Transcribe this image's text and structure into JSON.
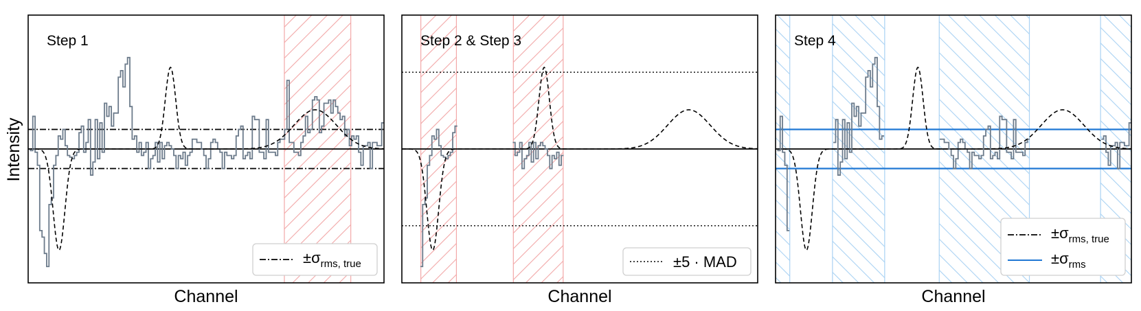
{
  "figure": {
    "ylabel": "Intensity",
    "xlabel": "Channel"
  },
  "colors": {
    "spectrum": "#6c7b8b",
    "model": "#000000",
    "hatch_red": "#f2a7a7",
    "hatch_blue": "#a9d2f3",
    "sigma_rms": "#1f77d4"
  },
  "chart_data": [
    {
      "type": "line",
      "panel": "step-1",
      "annotation": "Step 1",
      "xlabel": "Channel",
      "ylabel": "Intensity",
      "xlim": [
        0,
        150
      ],
      "ylim": [
        -4.1,
        4.1
      ],
      "spectrum": [
        0.0,
        -0.05,
        1.0,
        -0.1,
        -0.5,
        -2.5,
        -2.7,
        -3.2,
        -3.6,
        -1.7,
        -1.5,
        -0.5,
        -0.2,
        0.4,
        0.3,
        0.6,
        0.1,
        -0.2,
        -0.25,
        -0.3,
        -0.2,
        -0.1,
        0.5,
        0.7,
        -0.1,
        0.2,
        0.9,
        -0.8,
        -0.4,
        0.9,
        -0.3,
        0.8,
        -0.1,
        1.4,
        1.0,
        1.3,
        0.7,
        1.1,
        1.1,
        2.2,
        2.4,
        1.9,
        2.6,
        2.8,
        1.3,
        0.3,
        0.4,
        -0.1,
        0.2,
        -0.2,
        -0.1,
        0.2,
        -0.6,
        -0.3,
        -0.2,
        0.2,
        -0.4,
        0.2,
        -0.3,
        0.1,
        0.2,
        0.1,
        0.0,
        -0.2,
        -0.6,
        -0.2,
        -0.3,
        -0.1,
        -0.5,
        -0.2,
        -0.1,
        0.3,
        0.3,
        0.2,
        0.2,
        0.0,
        -0.2,
        -0.6,
        -0.3,
        0.2,
        0.3,
        0.2,
        0.0,
        -0.1,
        -0.6,
        -0.1,
        -0.2,
        -0.2,
        -0.3,
        -0.2,
        0.4,
        0.6,
        0.7,
        -0.3,
        -0.2,
        -0.1,
        -0.3,
        1.0,
        0.9,
        0.9,
        -0.1,
        -0.1,
        -0.3,
        0.9,
        -0.1,
        -0.1,
        -0.1,
        -0.2,
        0.2,
        0.3,
        0.3,
        0.6,
        2.1,
        0.2,
        0.2,
        -0.1,
        -0.1,
        -0.2,
        0.2,
        0.4,
        1.0,
        0.5,
        0.6,
        1.5,
        1.6,
        1.5,
        0.5,
        0.7,
        1.4,
        1.4,
        1.5,
        1.1,
        1.5,
        1.3,
        1.1,
        0.9,
        1.0,
        0.4,
        0.6,
        0.1,
        0.4,
        0.3,
        0.4,
        -0.1,
        -0.5,
        0.1,
        0.1,
        0.2,
        -0.6,
        0.2,
        0.2,
        0.1,
        0.1,
        0.8
      ],
      "model": [
        {
          "amp": -3.1,
          "center": 13,
          "width": 2.5
        },
        {
          "amp": 2.5,
          "center": 60,
          "width": 2.2
        },
        {
          "amp": 1.2,
          "center": 121,
          "width": 9.0
        }
      ],
      "hlines": [
        {
          "y": 0,
          "style": "solid"
        },
        {
          "y": 0.6,
          "style": "dashdot"
        },
        {
          "y": -0.6,
          "style": "dashdot"
        }
      ],
      "hatched_regions": [
        [
          108,
          136
        ]
      ],
      "hatch_color": "red",
      "legend": [
        {
          "label": "±σ",
          "sub": "rms, true",
          "style": "dashdot"
        }
      ],
      "legend_position": "lower right"
    },
    {
      "type": "line",
      "panel": "step-2-3",
      "annotation": "Step 2 & Step 3",
      "xlabel": "Channel",
      "xlim": [
        0,
        150
      ],
      "ylim": [
        -4.1,
        4.1
      ],
      "model": [
        {
          "amp": -3.1,
          "center": 13,
          "width": 2.5
        },
        {
          "amp": 2.5,
          "center": 60,
          "width": 2.2
        },
        {
          "amp": 1.2,
          "center": 121,
          "width": 9.0
        }
      ],
      "hlines": [
        {
          "y": 0,
          "style": "solid"
        },
        {
          "y": 2.35,
          "style": "dotted"
        },
        {
          "y": -2.35,
          "style": "dotted"
        }
      ],
      "hatched_regions": [
        [
          8,
          23
        ],
        [
          47,
          68
        ]
      ],
      "hatch_color": "red",
      "legend": [
        {
          "label": "±5 · MAD",
          "style": "dotted"
        }
      ],
      "legend_position": "lower right"
    },
    {
      "type": "line",
      "panel": "step-4",
      "annotation": "Step 4",
      "xlabel": "Channel",
      "xlim": [
        0,
        150
      ],
      "ylim": [
        -4.1,
        4.1
      ],
      "model": [
        {
          "amp": -3.1,
          "center": 13,
          "width": 2.5
        },
        {
          "amp": 2.5,
          "center": 60,
          "width": 2.2
        },
        {
          "amp": 1.2,
          "center": 121,
          "width": 9.0
        }
      ],
      "hlines": [
        {
          "y": 0,
          "style": "solid"
        },
        {
          "y": 0.6,
          "style": "dashdot"
        },
        {
          "y": -0.6,
          "style": "dashdot"
        },
        {
          "y": 0.6,
          "style": "blue"
        },
        {
          "y": -0.6,
          "style": "blue"
        }
      ],
      "hatched_regions": [
        [
          0,
          6
        ],
        [
          24,
          46
        ],
        [
          69,
          107
        ],
        [
          137,
          150
        ]
      ],
      "hatch_color": "blue",
      "legend": [
        {
          "label": "±σ",
          "sub": "rms, true",
          "style": "dashdot"
        },
        {
          "label": "±σ",
          "sub": "rms",
          "style": "blue"
        }
      ],
      "legend_position": "lower right"
    }
  ]
}
